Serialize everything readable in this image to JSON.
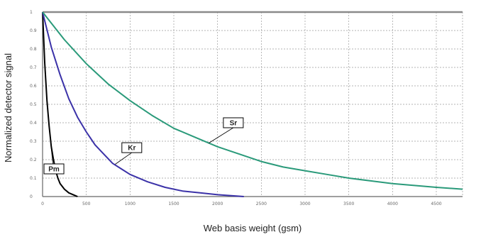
{
  "chart_data": {
    "type": "line",
    "title": "",
    "xlabel": "Web basis weight (gsm)",
    "ylabel": "Normalized detector signal",
    "xlim": [
      0,
      4800
    ],
    "ylim": [
      0,
      1
    ],
    "x_ticks": [
      "0",
      "500",
      "1000",
      "1500",
      "2000",
      "2500",
      "3000",
      "3500",
      "4000",
      "4500"
    ],
    "y_ticks": [
      "0",
      "0.1",
      "0.2",
      "0.3",
      "0.4",
      "0.5",
      "0.6",
      "0.7",
      "0.8",
      "0.9",
      "1"
    ],
    "grid": true,
    "legend": "none",
    "series": [
      {
        "name": "Pm",
        "color": "#000000",
        "x": [
          0,
          25,
          50,
          75,
          100,
          125,
          150,
          175,
          200,
          250,
          300,
          350,
          400
        ],
        "y": [
          1.0,
          0.72,
          0.52,
          0.38,
          0.27,
          0.2,
          0.14,
          0.1,
          0.07,
          0.04,
          0.02,
          0.01,
          0.0
        ]
      },
      {
        "name": "Kr",
        "color": "#3b32a8",
        "x": [
          0,
          100,
          200,
          300,
          400,
          500,
          600,
          700,
          800,
          900,
          1000,
          1200,
          1400,
          1600,
          1800,
          2000,
          2300
        ],
        "y": [
          1.0,
          0.81,
          0.66,
          0.53,
          0.43,
          0.35,
          0.28,
          0.23,
          0.18,
          0.15,
          0.12,
          0.08,
          0.05,
          0.03,
          0.02,
          0.01,
          0.0
        ]
      },
      {
        "name": "Sr",
        "color": "#2a9a7a",
        "x": [
          0,
          250,
          500,
          750,
          1000,
          1250,
          1500,
          1750,
          2000,
          2250,
          2500,
          2750,
          3000,
          3250,
          3500,
          3750,
          4000,
          4250,
          4500,
          4800
        ],
        "y": [
          1.0,
          0.85,
          0.72,
          0.61,
          0.52,
          0.44,
          0.37,
          0.32,
          0.27,
          0.23,
          0.19,
          0.16,
          0.14,
          0.12,
          0.1,
          0.085,
          0.07,
          0.06,
          0.05,
          0.04
        ]
      }
    ],
    "annotations": [
      {
        "text": "Pm",
        "series": "Pm",
        "box_x": 130,
        "box_y": 0.15,
        "point_x": 95,
        "point_y": 0.28
      },
      {
        "text": "Kr",
        "series": "Kr",
        "box_x": 1020,
        "box_y": 0.265,
        "point_x": 830,
        "point_y": 0.175
      },
      {
        "text": "Sr",
        "series": "Sr",
        "box_x": 2180,
        "box_y": 0.4,
        "point_x": 1900,
        "point_y": 0.29
      }
    ]
  }
}
